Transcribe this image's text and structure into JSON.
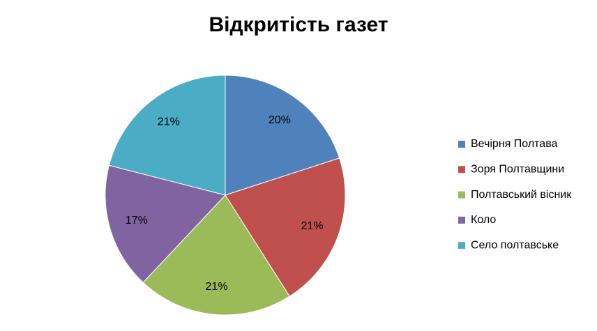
{
  "chart_data": {
    "type": "pie",
    "title": "Відкритість газет",
    "categories": [
      "Вечірня Полтава",
      "Зоря Полтавщини",
      "Полтавський вісник",
      "Коло",
      "Село полтавське"
    ],
    "values": [
      20,
      21,
      21,
      17,
      21
    ],
    "value_labels": [
      "20%",
      "21%",
      "21%",
      "17%",
      "21%"
    ],
    "colors": [
      "#4f81bd",
      "#c0504d",
      "#9bbb59",
      "#8064a2",
      "#4bacc6"
    ],
    "legend": "right"
  }
}
